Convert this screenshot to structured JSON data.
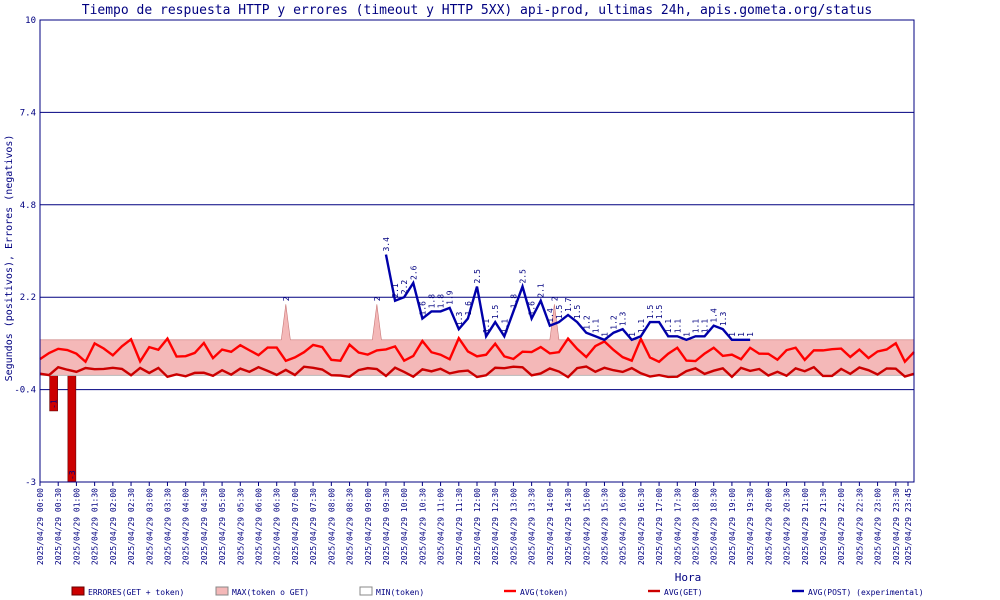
{
  "chart_data": {
    "type": "line",
    "title": "Tiempo de respuesta HTTP y errores (timeout y HTTP 5XX) api-prod, ultimas 24h, apis.gometa.org/status",
    "xlabel": "Hora",
    "ylabel": "Segundos (positivos), Errores (negativos)",
    "ylim": [
      -3,
      10
    ],
    "y_ticks": [
      {
        "value": 10,
        "label": "10"
      },
      {
        "value": 7.4,
        "label": "7.4"
      },
      {
        "value": 4.8,
        "label": "4.8"
      },
      {
        "value": 2.2,
        "label": "2.2"
      },
      {
        "value": -0.4,
        "label": "-0.4"
      },
      {
        "value": -3,
        "label": "-3"
      }
    ],
    "x_tick_labels": [
      "2025/04/29 00:00",
      "2025/04/29 00:30",
      "2025/04/29 01:00",
      "2025/04/29 01:30",
      "2025/04/29 02:00",
      "2025/04/29 02:30",
      "2025/04/29 03:00",
      "2025/04/29 03:30",
      "2025/04/29 04:00",
      "2025/04/29 04:30",
      "2025/04/29 05:00",
      "2025/04/29 05:30",
      "2025/04/29 06:00",
      "2025/04/29 06:30",
      "2025/04/29 07:00",
      "2025/04/29 07:30",
      "2025/04/29 08:00",
      "2025/04/29 08:30",
      "2025/04/29 09:00",
      "2025/04/29 09:30",
      "2025/04/29 10:00",
      "2025/04/29 10:30",
      "2025/04/29 11:00",
      "2025/04/29 11:30",
      "2025/04/29 12:00",
      "2025/04/29 12:30",
      "2025/04/29 13:00",
      "2025/04/29 13:30",
      "2025/04/29 14:00",
      "2025/04/29 14:30",
      "2025/04/29 15:00",
      "2025/04/29 15:30",
      "2025/04/29 16:00",
      "2025/04/29 16:30",
      "2025/04/29 17:00",
      "2025/04/29 17:30",
      "2025/04/29 18:00",
      "2025/04/29 18:30",
      "2025/04/29 19:00",
      "2025/04/29 19:30",
      "2025/04/29 20:00",
      "2025/04/29 20:30",
      "2025/04/29 21:00",
      "2025/04/29 21:30",
      "2025/04/29 22:00",
      "2025/04/29 22:30",
      "2025/04/29 23:00",
      "2025/04/29 23:30",
      "2025/04/29 23:45"
    ],
    "samples_per_hour": 4,
    "x_count": 96,
    "legend_position": "bottom",
    "grid": "horizontal",
    "series": [
      {
        "name": "ERRORES(GET + token)",
        "kind": "bar",
        "color": "#cc0000",
        "points": [
          {
            "i": 3,
            "y": -1,
            "label": "-1"
          },
          {
            "i": 7,
            "y": -3,
            "label": "-3"
          }
        ]
      },
      {
        "name": "MAX(token o GET)",
        "kind": "area",
        "color": "#f4b8b8",
        "base": 1,
        "peaks": [
          {
            "i": 54,
            "y": 2,
            "label": "2"
          },
          {
            "i": 74,
            "y": 2,
            "label": "2"
          },
          {
            "i": 113,
            "y": 2,
            "label": "2"
          }
        ]
      },
      {
        "name": "MIN(token)",
        "kind": "line",
        "color": "#bbbbbb",
        "value": 0
      },
      {
        "name": "AVG(token)",
        "kind": "line",
        "color": "#ff0000",
        "mean": 0.6
      },
      {
        "name": "AVG(GET)",
        "kind": "line",
        "color": "#cc0000",
        "mean": 0.1
      },
      {
        "name": "AVG(POST) (experimental)",
        "kind": "line",
        "color": "#0000aa",
        "points": [
          {
            "i": 76,
            "y": 3.4,
            "label": "3.4"
          },
          {
            "i": 78,
            "y": 2.1,
            "label": "2.1"
          },
          {
            "i": 80,
            "y": 2.2,
            "label": "2.2"
          },
          {
            "i": 82,
            "y": 2.6,
            "label": "2.6"
          },
          {
            "i": 84,
            "y": 1.6,
            "label": "1.6"
          },
          {
            "i": 86,
            "y": 1.8,
            "label": "1.8"
          },
          {
            "i": 88,
            "y": 1.8,
            "label": "1.8"
          },
          {
            "i": 90,
            "y": 1.9,
            "label": "1.9"
          },
          {
            "i": 92,
            "y": 1.3,
            "label": "1.3"
          },
          {
            "i": 94,
            "y": 1.6,
            "label": "1.6"
          },
          {
            "i": 96,
            "y": 2.5,
            "label": "2.5"
          },
          {
            "i": 98,
            "y": 1.1,
            "label": "1.1"
          },
          {
            "i": 100,
            "y": 1.5,
            "label": "1.5"
          },
          {
            "i": 102,
            "y": 1.1,
            "label": "1.1"
          },
          {
            "i": 104,
            "y": 1.8,
            "label": "1.8"
          },
          {
            "i": 106,
            "y": 2.5,
            "label": "2.5"
          },
          {
            "i": 108,
            "y": 1.6,
            "label": "1.6"
          },
          {
            "i": 110,
            "y": 2.1,
            "label": "2.1"
          },
          {
            "i": 112,
            "y": 1.4,
            "label": "1.4"
          },
          {
            "i": 114,
            "y": 1.5,
            "label": "1.5"
          },
          {
            "i": 116,
            "y": 1.7,
            "label": "1.7"
          },
          {
            "i": 118,
            "y": 1.5,
            "label": "1.5"
          },
          {
            "i": 120,
            "y": 1.2,
            "label": "1.2"
          },
          {
            "i": 122,
            "y": 1.1,
            "label": "1.1"
          },
          {
            "i": 124,
            "y": 1.0,
            "label": "1"
          },
          {
            "i": 126,
            "y": 1.2,
            "label": "1.2"
          },
          {
            "i": 128,
            "y": 1.3,
            "label": "1.3"
          },
          {
            "i": 130,
            "y": 1.0,
            "label": "1"
          },
          {
            "i": 132,
            "y": 1.1,
            "label": "1.1"
          },
          {
            "i": 134,
            "y": 1.5,
            "label": "1.5"
          },
          {
            "i": 136,
            "y": 1.5,
            "label": "1.5"
          },
          {
            "i": 138,
            "y": 1.1,
            "label": "1.1"
          },
          {
            "i": 140,
            "y": 1.1,
            "label": "1.1"
          },
          {
            "i": 142,
            "y": 1.0,
            "label": "1"
          },
          {
            "i": 144,
            "y": 1.1,
            "label": "1.1"
          },
          {
            "i": 146,
            "y": 1.1,
            "label": "1.1"
          },
          {
            "i": 148,
            "y": 1.4,
            "label": "1.4"
          },
          {
            "i": 150,
            "y": 1.3,
            "label": "1.3"
          },
          {
            "i": 152,
            "y": 1.0,
            "label": "1"
          },
          {
            "i": 154,
            "y": 1.0,
            "label": "1"
          },
          {
            "i": 156,
            "y": 1.0,
            "label": "1"
          }
        ]
      }
    ]
  }
}
